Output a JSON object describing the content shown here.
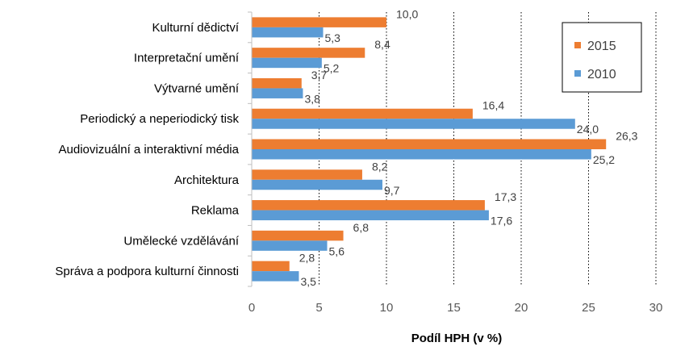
{
  "chart_data": {
    "type": "bar",
    "orientation": "horizontal",
    "categories": [
      "Kulturní dědictví",
      "Interpretační umění",
      "Výtvarné umění",
      "Periodický a neperiodický tisk",
      "Audiovizuální a interaktivní média",
      "Architektura",
      "Reklama",
      "Umělecké vzdělávání",
      "Správa a podpora kulturní činnosti"
    ],
    "series": [
      {
        "name": "2015",
        "color": "#ED7D31",
        "values": [
          10.0,
          8.4,
          3.7,
          16.4,
          26.3,
          8.2,
          17.3,
          6.8,
          2.8
        ],
        "labels": [
          "10,0",
          "8,4",
          "3,7",
          "16,4",
          "26,3",
          "8,2",
          "17,3",
          "6,8",
          "2,8"
        ]
      },
      {
        "name": "2010",
        "color": "#5B9BD5",
        "values": [
          5.3,
          5.2,
          3.8,
          24.0,
          25.2,
          9.7,
          17.6,
          5.6,
          3.5
        ],
        "labels": [
          "5,3",
          "5,2",
          "3,8",
          "24,0",
          "25,2",
          "9,7",
          "17,6",
          "5,6",
          "3,5"
        ]
      }
    ],
    "xlabel": "Podíl HPH (v %)",
    "xlim": [
      0,
      30
    ],
    "xticks": [
      0,
      5,
      10,
      15,
      20,
      25,
      30
    ],
    "xtick_labels": [
      "0",
      "5",
      "10",
      "15",
      "20",
      "25",
      "30"
    ],
    "grid": "vertical-dotted",
    "legend_position": "top-right"
  }
}
